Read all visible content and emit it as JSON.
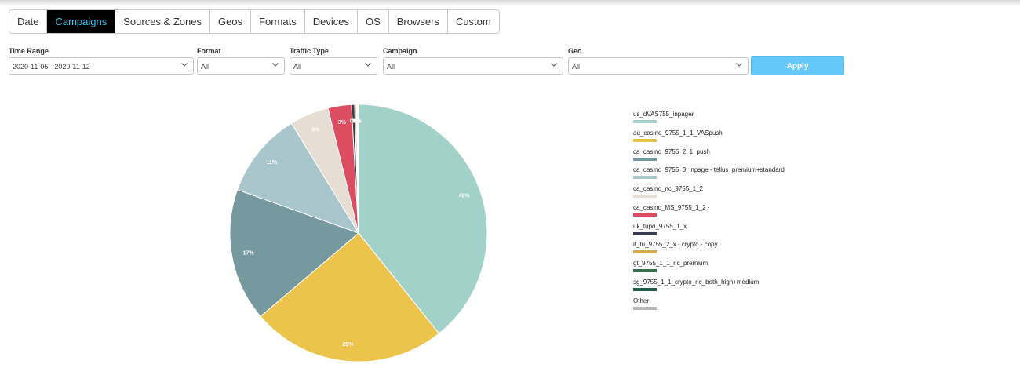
{
  "tabs": [
    "Date",
    "Campaigns",
    "Sources & Zones",
    "Geos",
    "Formats",
    "Devices",
    "OS",
    "Browsers",
    "Custom"
  ],
  "active_tab": "Campaigns",
  "filters": {
    "time_range": {
      "label": "Time Range",
      "value": "2020-11-05 - 2020-11-12"
    },
    "format": {
      "label": "Format",
      "value": "All"
    },
    "traffic_type": {
      "label": "Traffic Type",
      "value": "All"
    },
    "campaign": {
      "label": "Campaign",
      "value": "All"
    },
    "geo": {
      "label": "Geo",
      "value": "All"
    }
  },
  "apply_label": "Apply",
  "icons": {
    "dropdown": "chevron-down-icon"
  },
  "chart_data": {
    "type": "pie",
    "slices": [
      {
        "name": "us_dVAS755_inpager",
        "value": 40,
        "label": "40%",
        "color": "#a2d1c9"
      },
      {
        "name": "au_casino_9755_1_1_VASpush",
        "value": 25,
        "label": "25%",
        "color": "#ecc44c"
      },
      {
        "name": "ca_casino_9755_2_1_push",
        "value": 17,
        "label": "17%",
        "color": "#7699a0"
      },
      {
        "name": "ca_casino_9755_3_inpage - tellus_premium+standard",
        "value": 11,
        "label": "11%",
        "color": "#a9c6cc"
      },
      {
        "name": "ca_casino_ric_9755_1_2",
        "value": 5,
        "label": "5%",
        "color": "#e6ddd3"
      },
      {
        "name": "ca_casino_MS_9755_1_2 -",
        "value": 3,
        "label": "3%",
        "color": "#dd4d62"
      },
      {
        "name": "uk_tupo_9755_1_x",
        "value": 0.4,
        "label": "0%",
        "color": "#383a4e"
      },
      {
        "name": "it_tu_9755_2_x - crypto - copy",
        "value": 0.2,
        "label": "0%",
        "color": "#d4aa52"
      },
      {
        "name": "gt_9755_1_1_ric_premium",
        "value": 0.1,
        "label": "0%",
        "color": "#34704a"
      },
      {
        "name": "sg_9755_1_1_crypto_ric_both_high+medium",
        "value": 0.1,
        "label": "0%",
        "color": "#1f5d49"
      },
      {
        "name": "Other",
        "value": 0.1,
        "label": "",
        "color": "#b7b7b7"
      }
    ],
    "legend_position": "right"
  }
}
